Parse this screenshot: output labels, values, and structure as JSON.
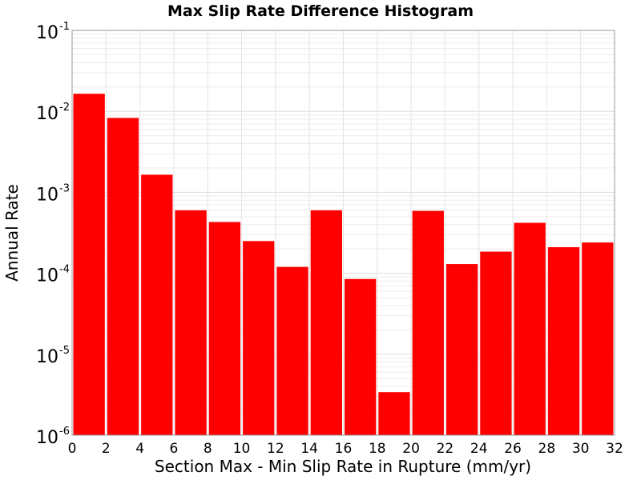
{
  "chart_data": {
    "type": "bar",
    "title": "Max Slip Rate Difference Histogram",
    "xlabel": "Section Max - Min Slip Rate in Rupture (mm/yr)",
    "ylabel": "Annual Rate",
    "yscale": "log",
    "xlim": [
      0,
      32
    ],
    "ylim": [
      1e-06,
      0.1
    ],
    "bin_width": 2,
    "x_ticks": [
      "0",
      "2",
      "4",
      "6",
      "8",
      "10",
      "12",
      "14",
      "16",
      "18",
      "20",
      "22",
      "24",
      "26",
      "28",
      "30",
      "32"
    ],
    "y_ticks": [
      {
        "base": "10",
        "exp": "-6"
      },
      {
        "base": "10",
        "exp": "-5"
      },
      {
        "base": "10",
        "exp": "-4"
      },
      {
        "base": "10",
        "exp": "-3"
      },
      {
        "base": "10",
        "exp": "-2"
      },
      {
        "base": "10",
        "exp": "-1"
      }
    ],
    "grid": true,
    "color": "#ff0000",
    "bins": [
      {
        "x": 1,
        "value": 0.0165
      },
      {
        "x": 3,
        "value": 0.0083
      },
      {
        "x": 5,
        "value": 0.00165
      },
      {
        "x": 7,
        "value": 0.0006
      },
      {
        "x": 9,
        "value": 0.00043
      },
      {
        "x": 11,
        "value": 0.00025
      },
      {
        "x": 13,
        "value": 0.00012
      },
      {
        "x": 15,
        "value": 0.0006
      },
      {
        "x": 17,
        "value": 8.5e-05
      },
      {
        "x": 19,
        "value": 3.4e-06
      },
      {
        "x": 21,
        "value": 0.00059
      },
      {
        "x": 23,
        "value": 0.00013
      },
      {
        "x": 25,
        "value": 0.000185
      },
      {
        "x": 27,
        "value": 0.00042
      },
      {
        "x": 29,
        "value": 0.00021
      },
      {
        "x": 31,
        "value": 0.00024
      }
    ]
  }
}
